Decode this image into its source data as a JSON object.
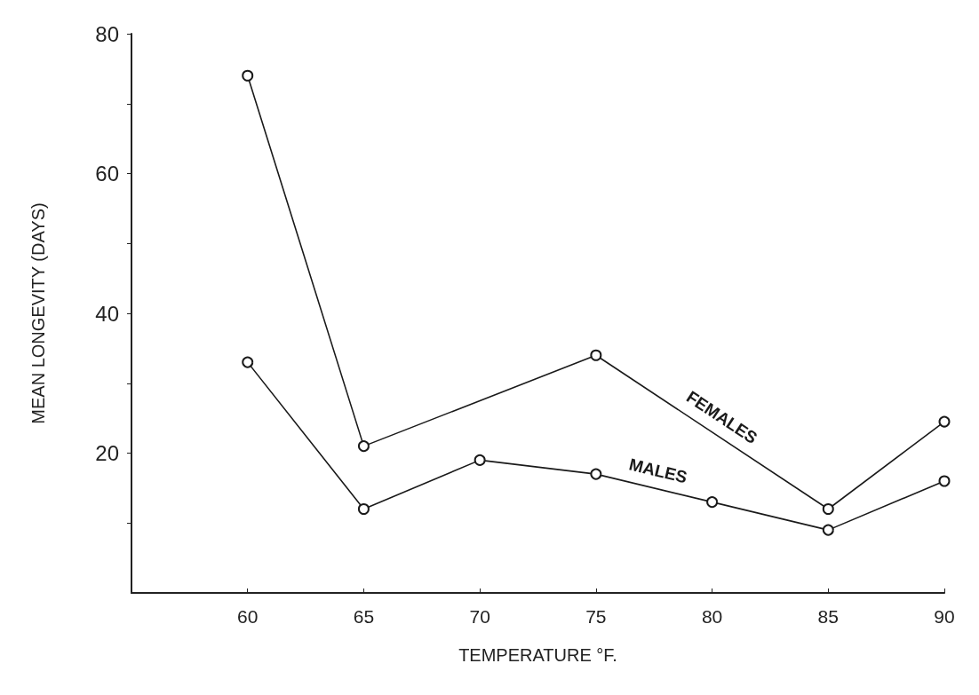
{
  "chart_data": {
    "type": "line",
    "xlabel": "TEMPERATURE °F.",
    "ylabel": "MEAN LONGEVITY (DAYS)",
    "xlim": [
      55,
      90
    ],
    "xticks": [
      60,
      65,
      70,
      75,
      80,
      85,
      90
    ],
    "ylim": [
      0,
      80
    ],
    "yticks": [
      {
        "value": 10,
        "label": null
      },
      20,
      {
        "value": 30,
        "label": null
      },
      40,
      {
        "value": 50,
        "label": null
      },
      60,
      {
        "value": 70,
        "label": null
      },
      80
    ],
    "series": [
      {
        "name": "FEMALES",
        "color": "#1a1a1a",
        "x": [
          60,
          65,
          75,
          85,
          90
        ],
        "values": [
          74,
          21,
          34,
          12,
          24.5
        ]
      },
      {
        "name": "MALES",
        "color": "#1a1a1a",
        "x": [
          60,
          65,
          70,
          75,
          80,
          85,
          90
        ],
        "values": [
          33,
          12,
          19,
          17,
          13,
          9,
          16
        ]
      }
    ],
    "marker": "circle",
    "line_style": "solid",
    "grid": false,
    "legend": false
  }
}
